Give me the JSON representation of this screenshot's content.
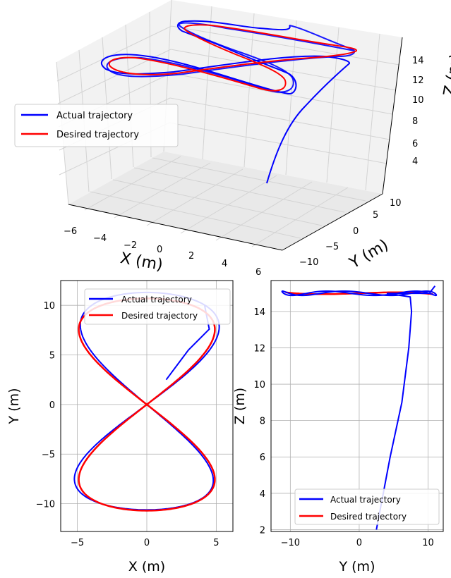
{
  "chart_data": [
    {
      "type": "line",
      "projection": "3d",
      "xlabel": "X (m)",
      "ylabel": "Y (m)",
      "zlabel": "Z (m)",
      "xticks": [
        "−6",
        "−4",
        "−2",
        "0",
        "2",
        "4",
        "6"
      ],
      "yticks": [
        "−10",
        "−5",
        "0",
        "5",
        "10"
      ],
      "zticks": [
        "4",
        "6",
        "8",
        "10",
        "12",
        "14"
      ],
      "grid": true,
      "legend": "left",
      "series": [
        {
          "name": "Actual trajectory",
          "color": "#0000ff"
        },
        {
          "name": "Desired trajectory",
          "color": "#ff0000"
        }
      ]
    },
    {
      "type": "line",
      "xlabel": "X (m)",
      "ylabel": "Y (m)",
      "xlim": [
        -6.2,
        6.2
      ],
      "ylim": [
        -12.8,
        12.5
      ],
      "xticks": [
        "−5",
        "0",
        "5"
      ],
      "yticks": [
        "−10",
        "−5",
        "0",
        "5",
        "10"
      ],
      "grid": true,
      "legend": "top-right",
      "series": [
        {
          "name": "Actual trajectory",
          "color": "#0000ff",
          "start": [
            1.4,
            2.5
          ],
          "amplitude_x": 5.0,
          "amplitude_y": 11.3
        },
        {
          "name": "Desired trajectory",
          "color": "#ff0000",
          "amplitude_x": 5.0,
          "amplitude_y": 10.7
        }
      ]
    },
    {
      "type": "line",
      "xlabel": "Y (m)",
      "ylabel": "Z (m)",
      "xlim": [
        -12.8,
        12.2
      ],
      "ylim": [
        1.9,
        15.7
      ],
      "xticks": [
        "−10",
        "0",
        "10"
      ],
      "yticks": [
        "2",
        "4",
        "6",
        "8",
        "10",
        "12",
        "14"
      ],
      "grid": true,
      "legend": "lower-right",
      "series": [
        {
          "name": "Actual trajectory",
          "color": "#0000ff",
          "start": [
            2.5,
            2.0
          ],
          "level_z": 15.0
        },
        {
          "name": "Desired trajectory",
          "color": "#ff0000",
          "level_z": 15.0,
          "y_range": [
            -10.7,
            10.7
          ]
        }
      ]
    }
  ]
}
